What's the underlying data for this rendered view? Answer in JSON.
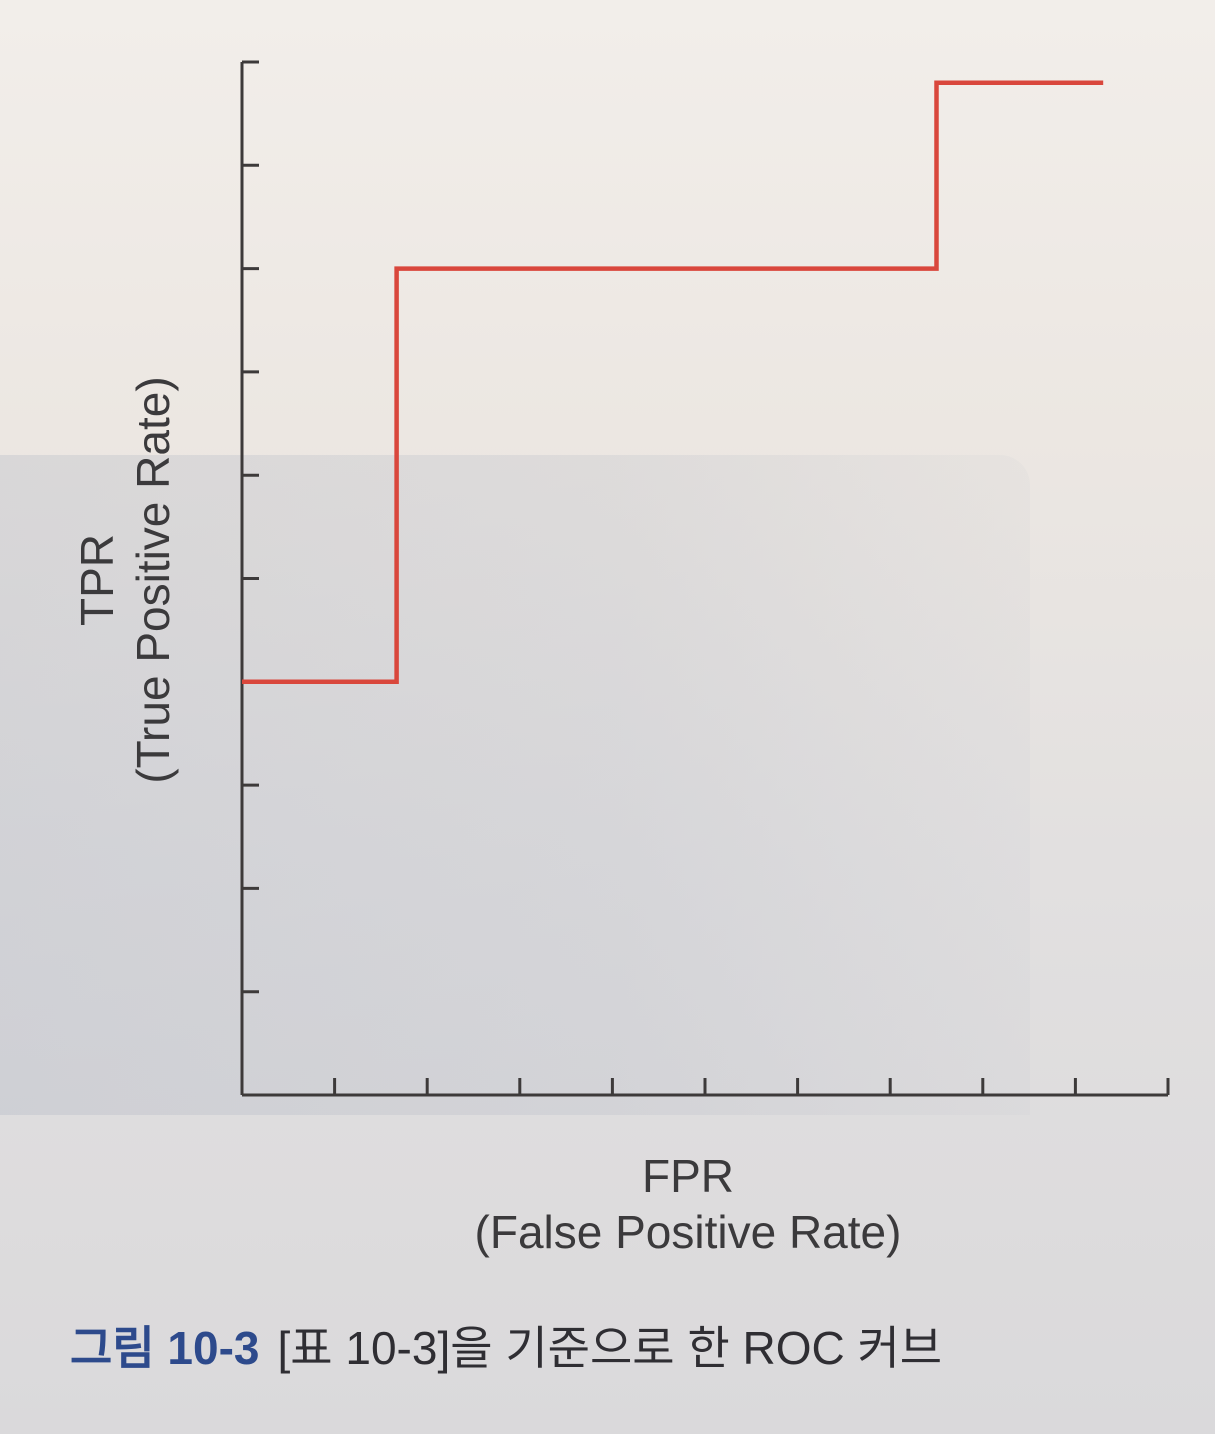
{
  "caption": {
    "label": "그림 10-3",
    "text": "[표 10-3]을 기준으로 한 ROC 커브"
  },
  "colors": {
    "curve": "#d9473c",
    "axis": "#3d3a3a",
    "caption_label": "#2d4a8c"
  },
  "chart_data": {
    "type": "line",
    "step": true,
    "title": "",
    "xlabel_line1": "FPR",
    "xlabel_line2": "(False Positive Rate)",
    "ylabel_line1": "TPR",
    "ylabel_line2": "(True Positive Rate)",
    "xlim": [
      0,
      1
    ],
    "ylim": [
      0,
      1
    ],
    "x_tick_count": 11,
    "y_tick_count": 11,
    "tick_labels_shown": false,
    "grid": false,
    "series": [
      {
        "x": [
          0.0,
          0.167,
          0.167,
          0.75,
          0.75,
          0.93
        ],
        "y": [
          0.4,
          0.4,
          0.8,
          0.8,
          0.98,
          0.98
        ]
      }
    ]
  }
}
